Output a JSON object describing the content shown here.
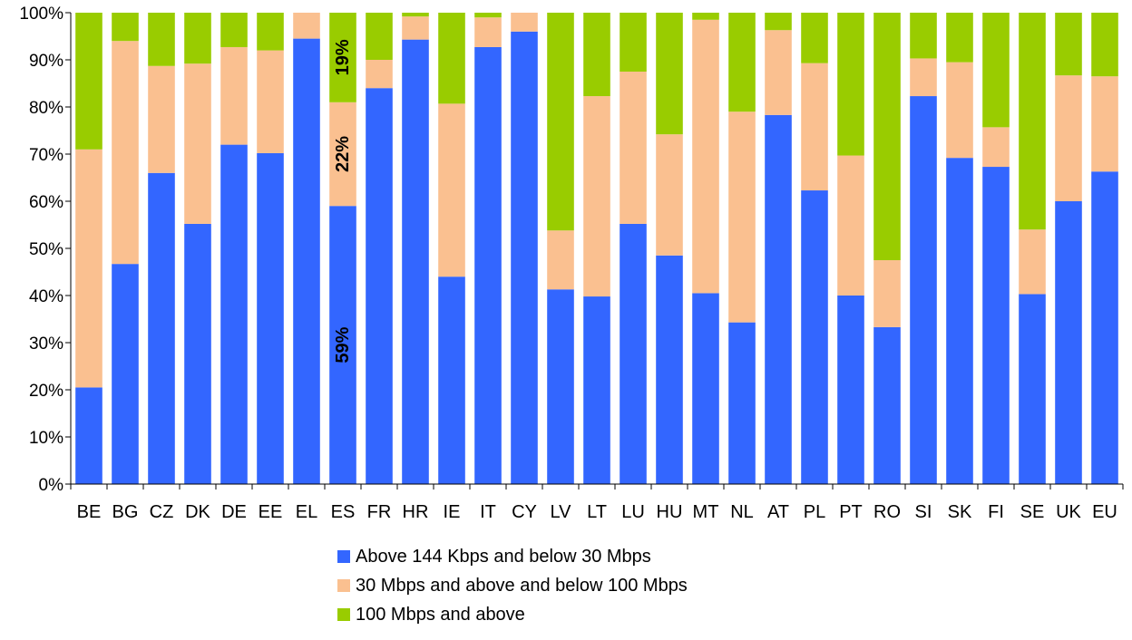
{
  "chart_data": {
    "type": "bar",
    "stacked": true,
    "percent_stacked": true,
    "categories": [
      "BE",
      "BG",
      "CZ",
      "DK",
      "DE",
      "EE",
      "EL",
      "ES",
      "FR",
      "HR",
      "IE",
      "IT",
      "CY",
      "LV",
      "LT",
      "LU",
      "HU",
      "MT",
      "NL",
      "AT",
      "PL",
      "PT",
      "RO",
      "SI",
      "SK",
      "FI",
      "SE",
      "UK",
      "EU"
    ],
    "series": [
      {
        "name": "Above 144 Kbps and below 30 Mbps",
        "color": "#3366ff",
        "values": [
          20.5,
          46.7,
          66.0,
          55.2,
          72.0,
          70.2,
          94.5,
          59.0,
          84.0,
          94.3,
          44.0,
          92.7,
          96.0,
          41.3,
          39.8,
          55.2,
          48.5,
          40.5,
          34.3,
          78.3,
          62.3,
          40.0,
          33.3,
          82.3,
          69.2,
          67.3,
          40.3,
          60.0,
          66.3
        ]
      },
      {
        "name": "30 Mbps and above and below 100 Mbps",
        "color": "#fac090",
        "values": [
          50.5,
          47.3,
          22.7,
          34.0,
          20.7,
          21.8,
          5.5,
          22.0,
          6.0,
          4.9,
          36.7,
          6.3,
          4.0,
          12.5,
          42.5,
          32.3,
          25.7,
          58.0,
          44.7,
          18.0,
          27.0,
          29.7,
          14.2,
          8.0,
          20.3,
          8.4,
          13.7,
          26.7,
          20.2
        ]
      },
      {
        "name": "100 Mbps and above",
        "color": "#99cc00",
        "values": [
          29.0,
          6.0,
          11.3,
          10.8,
          7.3,
          8.0,
          0.0,
          19.0,
          10.0,
          0.8,
          19.3,
          1.0,
          0.0,
          46.2,
          17.7,
          12.5,
          25.8,
          1.5,
          21.0,
          3.7,
          10.7,
          30.3,
          52.5,
          9.7,
          10.5,
          24.3,
          46.0,
          13.3,
          13.5
        ]
      }
    ],
    "y_ticks": [
      "0%",
      "10%",
      "20%",
      "30%",
      "40%",
      "50%",
      "60%",
      "70%",
      "80%",
      "90%",
      "100%"
    ],
    "ylim": [
      0,
      100
    ],
    "annotations": [
      {
        "category": "ES",
        "series": 0,
        "text": "59%"
      },
      {
        "category": "ES",
        "series": 1,
        "text": "22%"
      },
      {
        "category": "ES",
        "series": 2,
        "text": "19%"
      }
    ],
    "grid": false,
    "legend_position": "bottom"
  }
}
